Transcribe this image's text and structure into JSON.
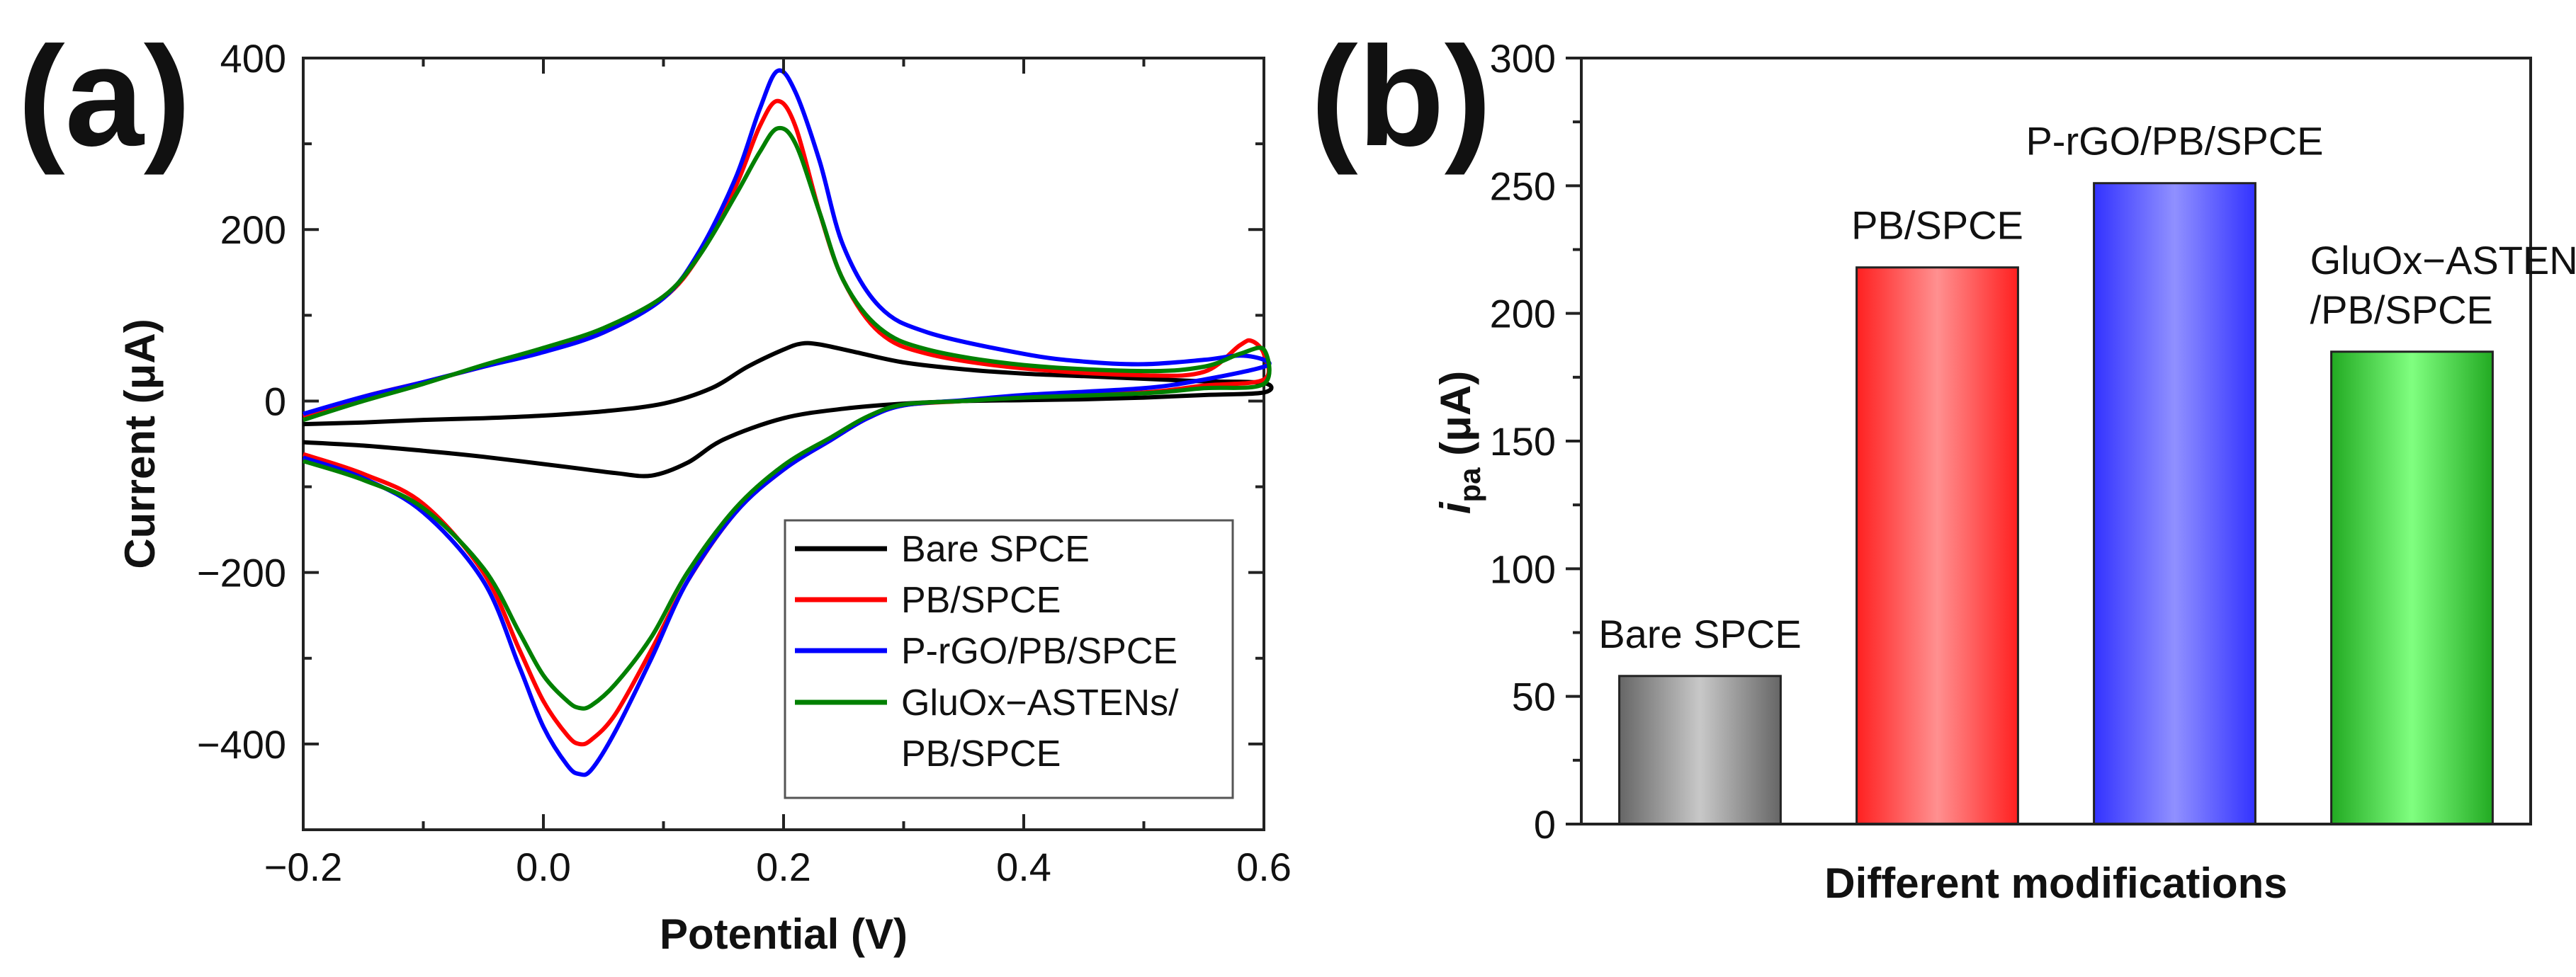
{
  "panel_labels": {
    "a": "(a)",
    "b": "(b)"
  },
  "chart_data": [
    {
      "type": "line",
      "panel": "(a)",
      "xlabel": "Potential (V)",
      "ylabel": "Current (μA)",
      "xlim": [
        -0.2,
        0.6
      ],
      "ylim": [
        -500,
        400
      ],
      "xticks": [
        -0.2,
        0.0,
        0.2,
        0.4,
        0.6
      ],
      "xtick_labels": [
        "−0.2",
        "0.0",
        "0.2",
        "0.4",
        "0.6"
      ],
      "yticks": [
        -400,
        -200,
        0,
        200,
        400
      ],
      "ytick_labels": [
        "−400",
        "−200",
        "0",
        "200",
        "400"
      ],
      "legend_position": "bottom-right",
      "series": [
        {
          "name": "Bare SPCE",
          "legend_lines": [
            "Bare SPCE"
          ],
          "color": "#000000",
          "forward": [
            [
              -0.2,
              -27
            ],
            [
              -0.15,
              -25
            ],
            [
              -0.1,
              -22
            ],
            [
              -0.05,
              -20
            ],
            [
              0.0,
              -17
            ],
            [
              0.05,
              -12
            ],
            [
              0.1,
              -3
            ],
            [
              0.14,
              15
            ],
            [
              0.17,
              40
            ],
            [
              0.2,
              60
            ],
            [
              0.215,
              67
            ],
            [
              0.23,
              66
            ],
            [
              0.26,
              57
            ],
            [
              0.3,
              45
            ],
            [
              0.35,
              37
            ],
            [
              0.4,
              32
            ],
            [
              0.45,
              29
            ],
            [
              0.5,
              26
            ],
            [
              0.55,
              23
            ],
            [
              0.6,
              21
            ]
          ],
          "reverse": [
            [
              0.6,
              10
            ],
            [
              0.55,
              7
            ],
            [
              0.5,
              4
            ],
            [
              0.45,
              2
            ],
            [
              0.4,
              1
            ],
            [
              0.35,
              0
            ],
            [
              0.3,
              -3
            ],
            [
              0.25,
              -9
            ],
            [
              0.2,
              -20
            ],
            [
              0.15,
              -45
            ],
            [
              0.12,
              -72
            ],
            [
              0.09,
              -87
            ],
            [
              0.06,
              -84
            ],
            [
              0.02,
              -77
            ],
            [
              -0.05,
              -65
            ],
            [
              -0.1,
              -58
            ],
            [
              -0.15,
              -52
            ],
            [
              -0.2,
              -48
            ]
          ]
        },
        {
          "name": "PB/SPCE",
          "legend_lines": [
            "PB/SPCE"
          ],
          "color": "#ff0000",
          "forward": [
            [
              -0.2,
              -18
            ],
            [
              -0.15,
              5
            ],
            [
              -0.1,
              22
            ],
            [
              -0.05,
              40
            ],
            [
              0.0,
              58
            ],
            [
              0.05,
              80
            ],
            [
              0.1,
              120
            ],
            [
              0.13,
              170
            ],
            [
              0.16,
              250
            ],
            [
              0.18,
              320
            ],
            [
              0.195,
              350
            ],
            [
              0.21,
              320
            ],
            [
              0.23,
              220
            ],
            [
              0.25,
              140
            ],
            [
              0.28,
              80
            ],
            [
              0.32,
              55
            ],
            [
              0.4,
              38
            ],
            [
              0.5,
              30
            ],
            [
              0.55,
              34
            ],
            [
              0.58,
              65
            ],
            [
              0.59,
              70
            ],
            [
              0.6,
              55
            ]
          ],
          "reverse": [
            [
              0.6,
              25
            ],
            [
              0.55,
              18
            ],
            [
              0.5,
              10
            ],
            [
              0.4,
              5
            ],
            [
              0.35,
              0
            ],
            [
              0.3,
              -5
            ],
            [
              0.27,
              -20
            ],
            [
              0.24,
              -45
            ],
            [
              0.2,
              -80
            ],
            [
              0.16,
              -130
            ],
            [
              0.12,
              -210
            ],
            [
              0.09,
              -290
            ],
            [
              0.06,
              -365
            ],
            [
              0.04,
              -395
            ],
            [
              0.03,
              -400
            ],
            [
              0.02,
              -390
            ],
            [
              0.0,
              -350
            ],
            [
              -0.02,
              -290
            ],
            [
              -0.05,
              -200
            ],
            [
              -0.1,
              -120
            ],
            [
              -0.15,
              -85
            ],
            [
              -0.2,
              -62
            ]
          ]
        },
        {
          "name": "P-rGO/PB/SPCE",
          "legend_lines": [
            "P-rGO/PB/SPCE"
          ],
          "color": "#0000ff",
          "forward": [
            [
              -0.2,
              -15
            ],
            [
              -0.15,
              5
            ],
            [
              -0.1,
              22
            ],
            [
              -0.05,
              40
            ],
            [
              0.0,
              57
            ],
            [
              0.05,
              80
            ],
            [
              0.1,
              120
            ],
            [
              0.13,
              175
            ],
            [
              0.16,
              260
            ],
            [
              0.18,
              340
            ],
            [
              0.195,
              385
            ],
            [
              0.21,
              360
            ],
            [
              0.23,
              280
            ],
            [
              0.25,
              180
            ],
            [
              0.28,
              110
            ],
            [
              0.32,
              80
            ],
            [
              0.4,
              55
            ],
            [
              0.45,
              46
            ],
            [
              0.5,
              43
            ],
            [
              0.55,
              48
            ],
            [
              0.58,
              53
            ],
            [
              0.6,
              48
            ]
          ],
          "reverse": [
            [
              0.6,
              40
            ],
            [
              0.55,
              25
            ],
            [
              0.5,
              15
            ],
            [
              0.4,
              7
            ],
            [
              0.35,
              1
            ],
            [
              0.3,
              -5
            ],
            [
              0.27,
              -20
            ],
            [
              0.24,
              -45
            ],
            [
              0.2,
              -80
            ],
            [
              0.16,
              -130
            ],
            [
              0.12,
              -210
            ],
            [
              0.09,
              -300
            ],
            [
              0.06,
              -385
            ],
            [
              0.04,
              -430
            ],
            [
              0.03,
              -435
            ],
            [
              0.02,
              -425
            ],
            [
              0.0,
              -380
            ],
            [
              -0.02,
              -310
            ],
            [
              -0.05,
              -210
            ],
            [
              -0.1,
              -130
            ],
            [
              -0.15,
              -90
            ],
            [
              -0.2,
              -66
            ]
          ]
        },
        {
          "name": "GluOx−ASTENs/PB/SPCE",
          "legend_lines": [
            "GluOx−ASTENs/",
            "PB/SPCE"
          ],
          "color": "#008000",
          "forward": [
            [
              -0.2,
              -22
            ],
            [
              -0.15,
              0
            ],
            [
              -0.1,
              20
            ],
            [
              -0.05,
              42
            ],
            [
              0.0,
              62
            ],
            [
              0.05,
              85
            ],
            [
              0.1,
              122
            ],
            [
              0.13,
              170
            ],
            [
              0.16,
              240
            ],
            [
              0.18,
              290
            ],
            [
              0.195,
              318
            ],
            [
              0.21,
              300
            ],
            [
              0.23,
              220
            ],
            [
              0.25,
              140
            ],
            [
              0.28,
              85
            ],
            [
              0.32,
              60
            ],
            [
              0.4,
              42
            ],
            [
              0.5,
              35
            ],
            [
              0.55,
              40
            ],
            [
              0.58,
              55
            ],
            [
              0.6,
              60
            ]
          ],
          "reverse": [
            [
              0.6,
              20
            ],
            [
              0.55,
              15
            ],
            [
              0.5,
              9
            ],
            [
              0.4,
              4
            ],
            [
              0.35,
              0
            ],
            [
              0.3,
              -4
            ],
            [
              0.27,
              -18
            ],
            [
              0.24,
              -42
            ],
            [
              0.2,
              -75
            ],
            [
              0.16,
              -125
            ],
            [
              0.12,
              -200
            ],
            [
              0.09,
              -275
            ],
            [
              0.06,
              -330
            ],
            [
              0.04,
              -355
            ],
            [
              0.03,
              -358
            ],
            [
              0.02,
              -350
            ],
            [
              0.0,
              -320
            ],
            [
              -0.02,
              -270
            ],
            [
              -0.05,
              -195
            ],
            [
              -0.1,
              -125
            ],
            [
              -0.15,
              -92
            ],
            [
              -0.2,
              -70
            ]
          ]
        }
      ]
    },
    {
      "type": "bar",
      "panel": "(b)",
      "xlabel": "Different modifications",
      "ylabel_main": "i",
      "ylabel_sub": "pa",
      "ylabel_unit": " (μA)",
      "ylim": [
        0,
        300
      ],
      "yticks": [
        0,
        50,
        100,
        150,
        200,
        250,
        300
      ],
      "ytick_labels": [
        "0",
        "50",
        "100",
        "150",
        "200",
        "250",
        "300"
      ],
      "categories": [
        "Bare SPCE",
        "PB/SPCE",
        "P-rGO/PB/SPCE",
        "GluOx−ASTENs/PB/SPCE"
      ],
      "category_label_lines": [
        [
          "Bare SPCE"
        ],
        [
          "PB/SPCE"
        ],
        [
          "P-rGO/PB/SPCE"
        ],
        [
          "GluOx−ASTENs",
          "/PB/SPCE"
        ]
      ],
      "values": [
        58,
        218,
        251,
        185
      ],
      "colors": [
        "#666666",
        "#ff2020",
        "#3333ff",
        "#22aa22"
      ],
      "highlight_colors": [
        "#c8c8c8",
        "#ff9090",
        "#9090ff",
        "#80ff80"
      ]
    }
  ]
}
